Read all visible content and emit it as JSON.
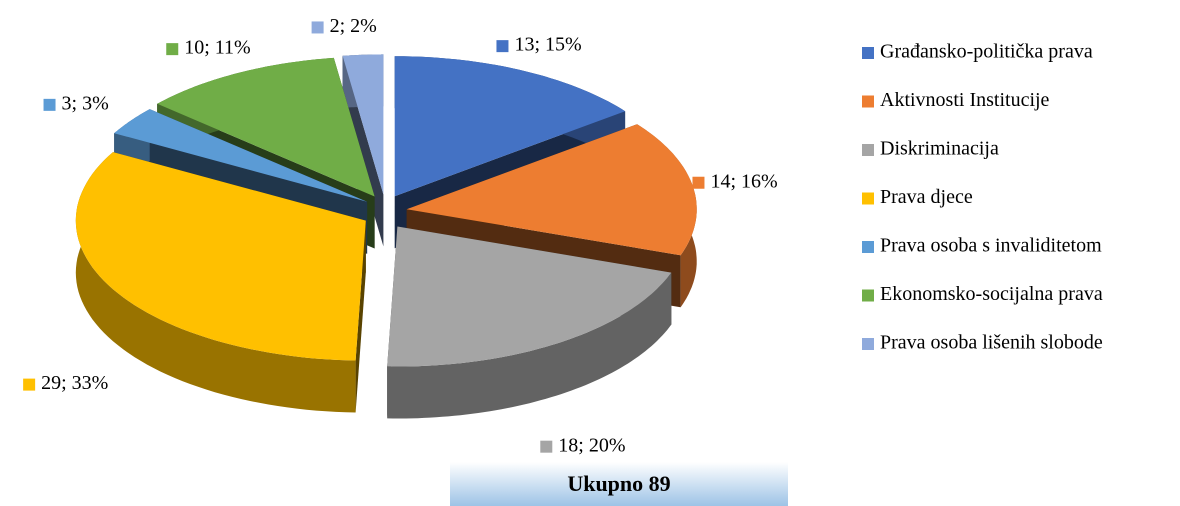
{
  "chart_data": {
    "type": "pie3d",
    "categories": [
      "Građansko-politička prava",
      "Aktivnosti Institucije",
      "Diskriminacija",
      "Prava djece",
      "Prava osoba s invaliditetom",
      "Ekonomsko-socijalna prava",
      "Prava osoba lišenih slobode"
    ],
    "values": [
      13,
      14,
      18,
      29,
      3,
      10,
      2
    ],
    "value_labels": [
      "13; 15%",
      "14; 16%",
      "18; 20%",
      "29; 33%",
      "3; 3%",
      "10; 11%",
      "2; 2%"
    ],
    "colors": [
      "#4472c4",
      "#ed7d31",
      "#a5a5a5",
      "#ffc000",
      "#5b9bd5",
      "#70ad47",
      "#8faadc"
    ],
    "total_label": "Ukupno 89"
  }
}
